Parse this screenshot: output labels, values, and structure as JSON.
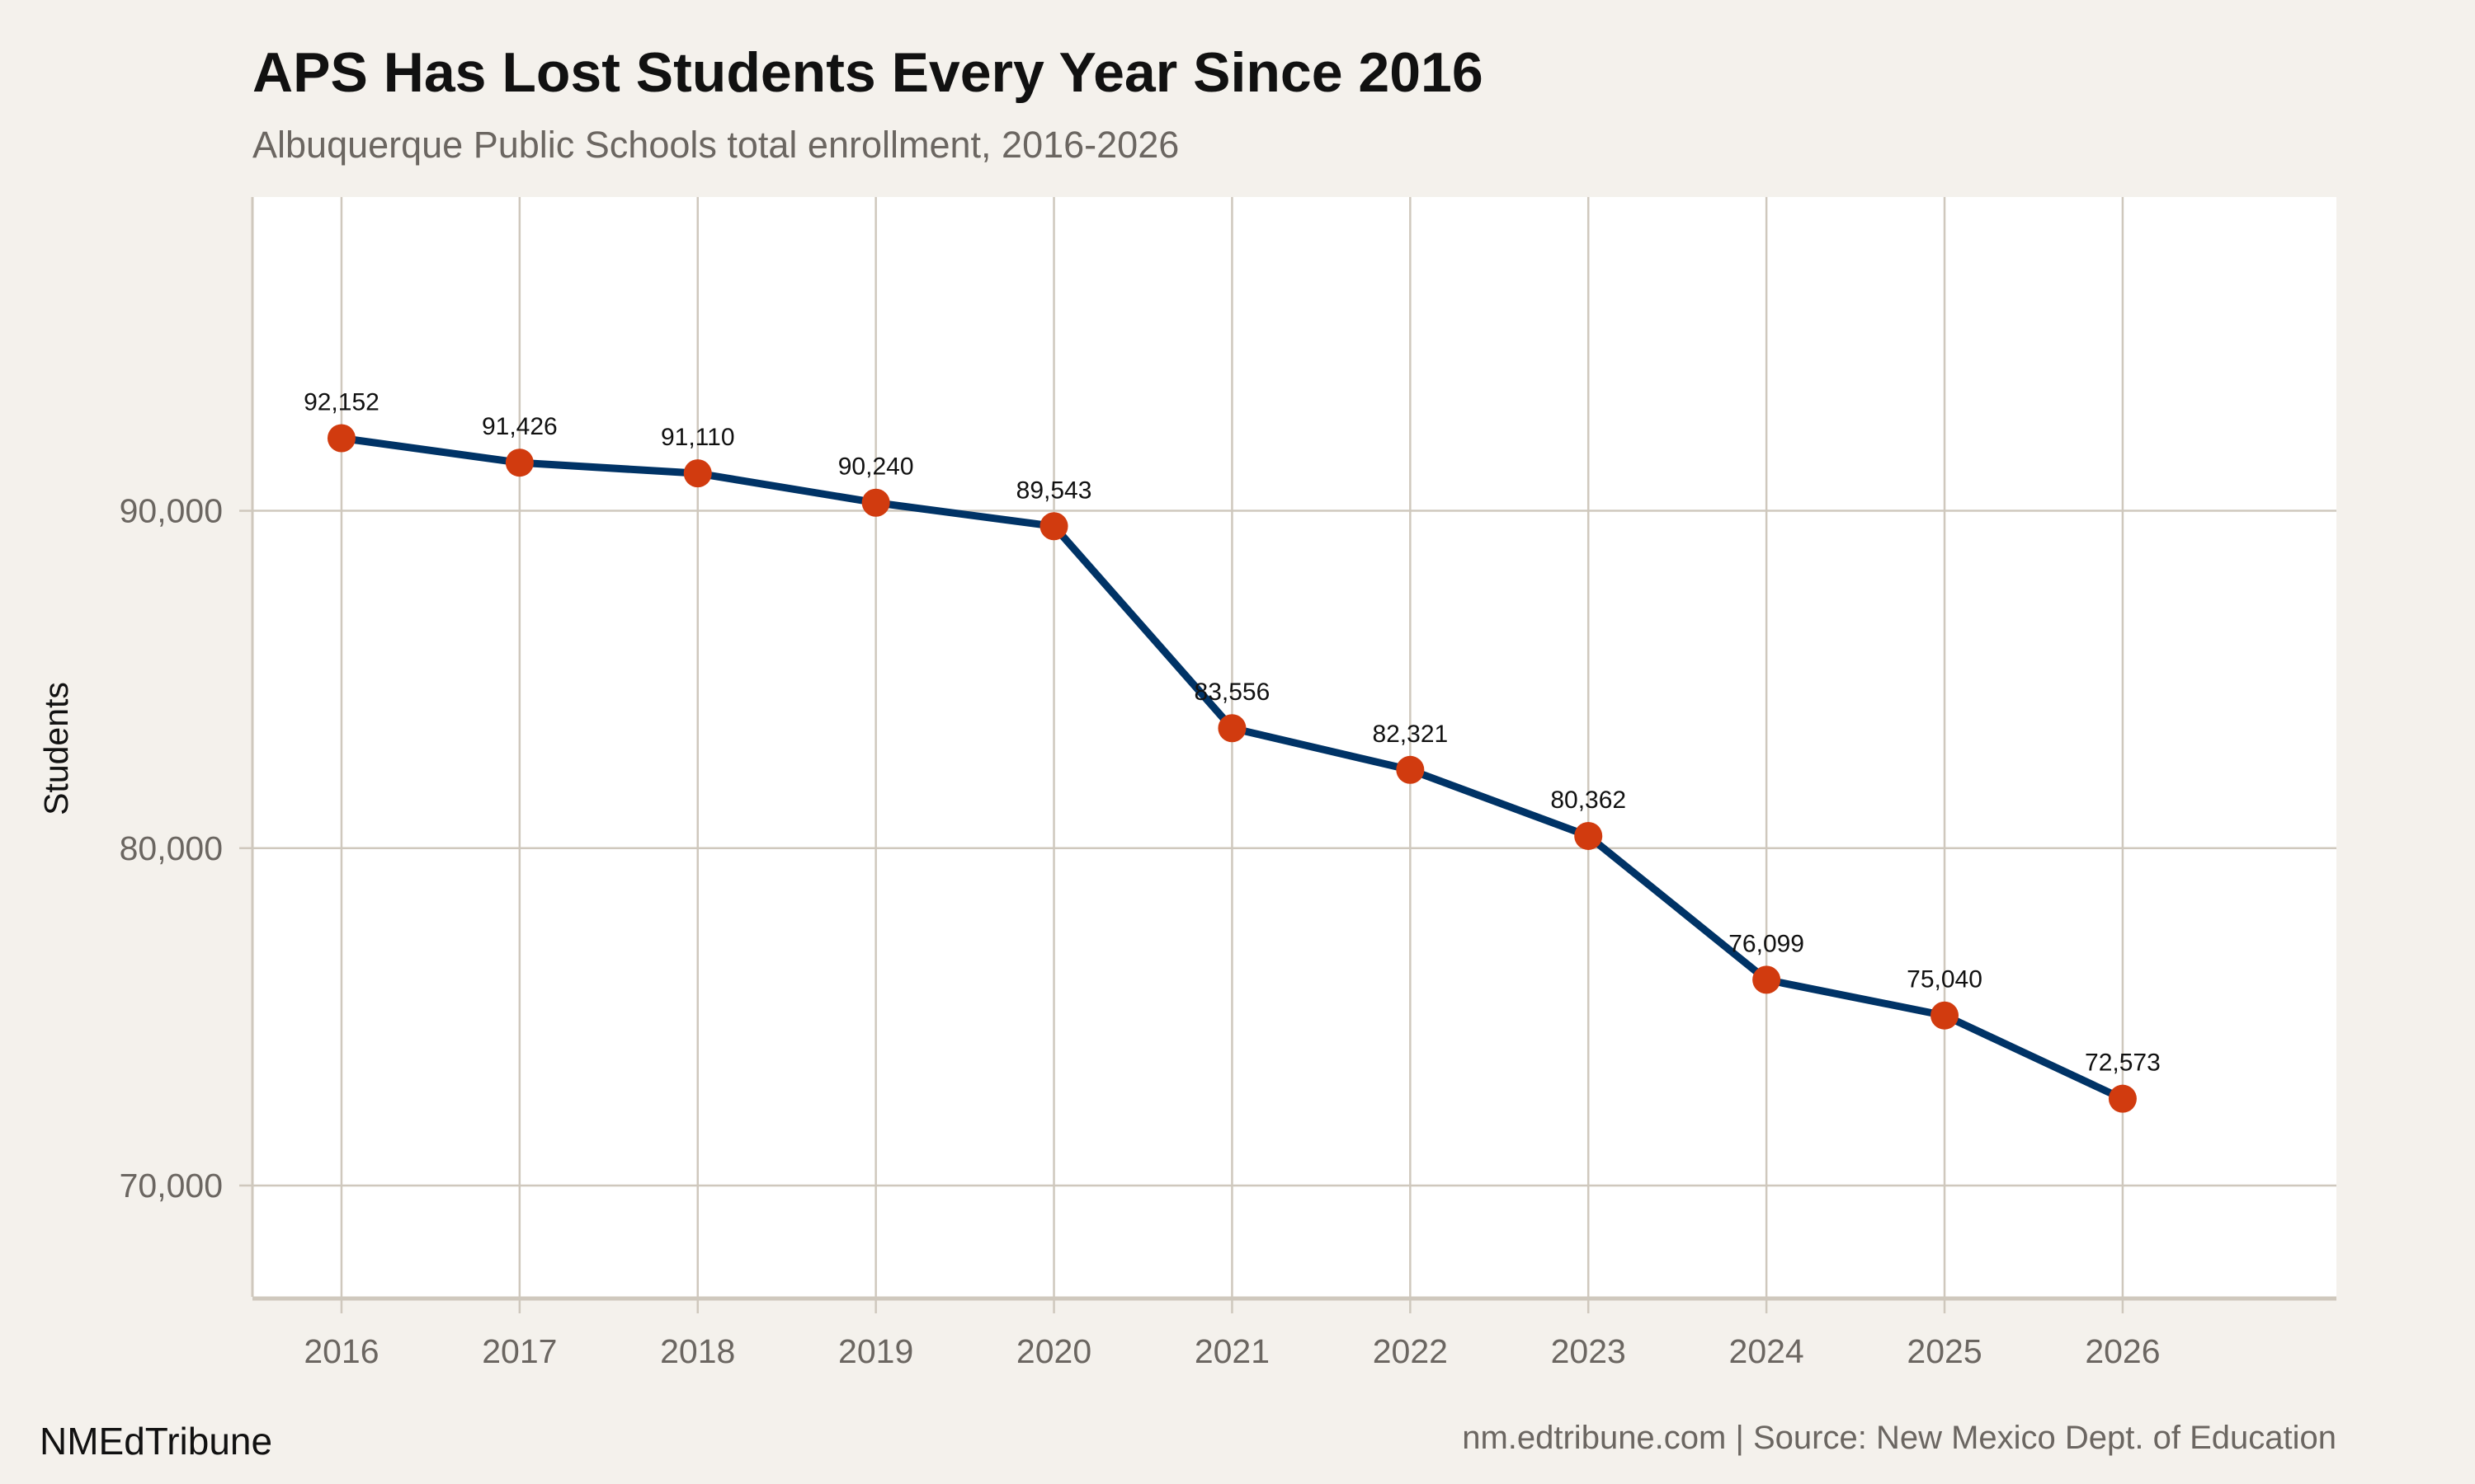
{
  "title": "APS Has Lost Students Every Year Since 2016",
  "subtitle": "Albuquerque Public Schools total enrollment, 2016-2026",
  "brand": "NMEdTribune",
  "source": "nm.edtribune.com | Source: New Mexico Dept. of Education",
  "colors": {
    "background": "#f4f1ec",
    "panel": "#ffffff",
    "grid": "#cfc8bd",
    "line": "#003366",
    "points": "#d13b0f"
  },
  "chart_data": {
    "type": "line",
    "title": "APS Has Lost Students Every Year Since 2016",
    "xlabel": "",
    "ylabel": "Students",
    "x": [
      2016,
      2017,
      2018,
      2019,
      2020,
      2021,
      2022,
      2023,
      2024,
      2025,
      2026
    ],
    "series": [
      {
        "values": [
          92152,
          91426,
          91110,
          90240,
          89543,
          83556,
          82321,
          80362,
          76099,
          75040,
          72573
        ]
      }
    ],
    "data_labels": [
      "92,152",
      "91,426",
      "91,110",
      "90,240",
      "89,543",
      "83,556",
      "82,321",
      "80,362",
      "76,099",
      "75,040",
      "72,573"
    ],
    "xticks": [
      "2016",
      "2017",
      "2018",
      "2019",
      "2020",
      "2021",
      "2022",
      "2023",
      "2024",
      "2025",
      "2026"
    ],
    "yticks": [
      {
        "value": 70000,
        "label": "70,000"
      },
      {
        "value": 80000,
        "label": "80,000"
      },
      {
        "value": 90000,
        "label": "90,000"
      }
    ],
    "xlim": [
      2015.5,
      2027.2
    ],
    "ylim": [
      66700,
      99300
    ],
    "grid": true,
    "legend": "none"
  }
}
